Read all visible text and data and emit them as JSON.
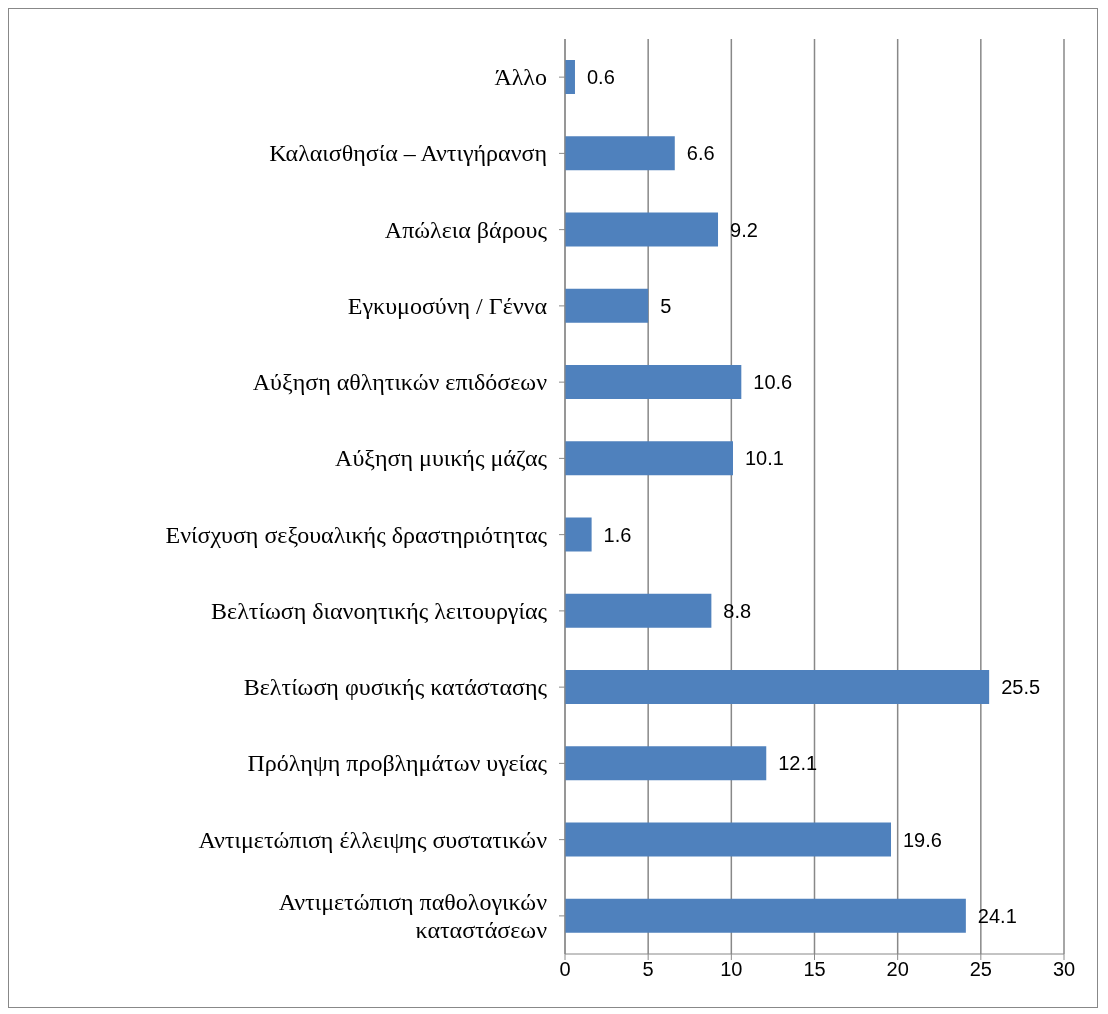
{
  "chart_data": {
    "type": "bar",
    "orientation": "horizontal",
    "categories": [
      "Άλλο",
      "Καλαισθησία – Αντιγήρανση",
      "Απώλεια βάρους",
      "Εγκυμοσύνη / Γέννα",
      "Αύξηση αθλητικών επιδόσεων",
      "Αύξηση μυικής μάζας",
      "Ενίσχυση σεξουαλικής δραστηριότητας",
      "Βελτίωση διανοητικής λειτουργίας",
      "Βελτίωση φυσικής κατάστασης",
      "Πρόληψη προβλημάτων υγείας",
      "Αντιμετώπιση έλλειψης συστατικών",
      "Αντιμετώπιση παθολογικών καταστάσεων"
    ],
    "values": [
      0.6,
      6.6,
      9.2,
      5,
      10.6,
      10.1,
      1.6,
      8.8,
      25.5,
      12.1,
      19.6,
      24.1
    ],
    "color": "#4f81bd",
    "xlim": [
      0,
      30
    ],
    "xticks": [
      0,
      5,
      10,
      15,
      20,
      25,
      30
    ],
    "grid": "x",
    "data_labels": true
  }
}
